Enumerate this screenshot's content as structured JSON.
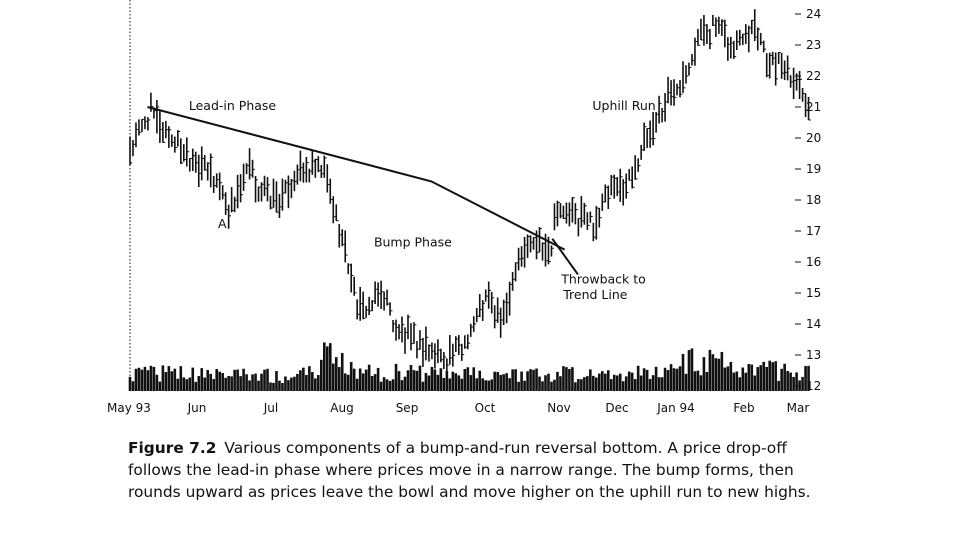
{
  "chart_data": {
    "type": "bar",
    "subtype": "ohlc-price-with-volume",
    "x_tick_labels": [
      "May 93",
      "Jun",
      "Jul",
      "Aug",
      "Sep",
      "Oct",
      "Nov",
      "Dec",
      "Jan 94",
      "Feb",
      "Mar"
    ],
    "y_tick_labels": [
      "24",
      "23",
      "22",
      "21",
      "20",
      "19",
      "18",
      "17",
      "16",
      "15",
      "14",
      "13",
      "12"
    ],
    "ylim": [
      12,
      24.3
    ],
    "grid": false,
    "price_anchors": {
      "x": [
        0,
        0.3,
        1.0,
        1.5,
        2.6,
        3.6,
        4.2,
        4.9,
        5.8,
        6.3,
        7.4,
        8.1,
        9.5,
        11.2,
        12.4,
        12.9,
        13.1,
        13.2,
        14.0,
        14.7,
        15.3,
        16.2,
        17.4,
        18.2,
        18.9,
        19.9,
        20.6,
        20.65,
        21.3,
        22.6,
        23.4,
        24.2,
        25.0,
        26.0,
        27.0,
        27.9,
        28.6,
        29.3,
        29.8,
        30.5,
        31.2,
        31.7,
        32.3,
        33.1
      ],
      "y": [
        19.5,
        20.0,
        20.8,
        20.3,
        19.6,
        19.0,
        18.6,
        17.6,
        19.0,
        18.3,
        17.9,
        18.9,
        18.9,
        14.4,
        14.9,
        14.0,
        13.6,
        13.7,
        13.3,
        13.1,
        12.9,
        13.2,
        14.8,
        13.9,
        16.2,
        16.7,
        16.3,
        17.6,
        17.5,
        17.2,
        18.2,
        18.4,
        19.6,
        21.0,
        22.1,
        23.4,
        23.6,
        22.8,
        23.3,
        23.7,
        22.3,
        22.4,
        22.0,
        21.2
      ]
    },
    "volume_profile": {
      "x": [
        0,
        4.0,
        8.0,
        9.3,
        9.6,
        10.3,
        11.0,
        14.0,
        17.0,
        20.0,
        23.0,
        26.0,
        27.2,
        28.6,
        29.8,
        30.8,
        33.1
      ],
      "level": [
        0.35,
        0.3,
        0.3,
        0.35,
        1.0,
        0.55,
        0.35,
        0.35,
        0.3,
        0.35,
        0.3,
        0.35,
        0.55,
        0.6,
        0.45,
        0.4,
        0.35
      ]
    },
    "trend_lines": [
      {
        "name": "trend-line",
        "points": [
          [
            0.85,
            21.0
          ],
          [
            14.7,
            18.6
          ],
          [
            21.2,
            16.4
          ]
        ]
      },
      {
        "name": "throwback-pointer",
        "points": [
          [
            20.6,
            16.75
          ],
          [
            21.85,
            15.6
          ]
        ]
      }
    ],
    "annotations": [
      {
        "text": "Lead-in Phase",
        "x": 5.0,
        "y": 20.9
      },
      {
        "text": "A",
        "x": 4.5,
        "y": 17.1
      },
      {
        "text": "Bump Phase",
        "x": 13.8,
        "y": 16.5
      },
      {
        "text": "Uphill Run",
        "x": 24.1,
        "y": 20.9
      },
      {
        "text": "Throwback to",
        "x": 23.1,
        "y": 15.3
      },
      {
        "text": "Trend Line",
        "x": 22.7,
        "y": 14.8
      }
    ]
  },
  "caption": {
    "figure_label": "Figure 7.2",
    "text": "Various components of a bump-and-run reversal bottom. A price drop-off follows the lead-in phase where prices move in a narrow range. The bump forms, then rounds upward as prices leave the bowl and move higher on the uphill run to new highs."
  }
}
